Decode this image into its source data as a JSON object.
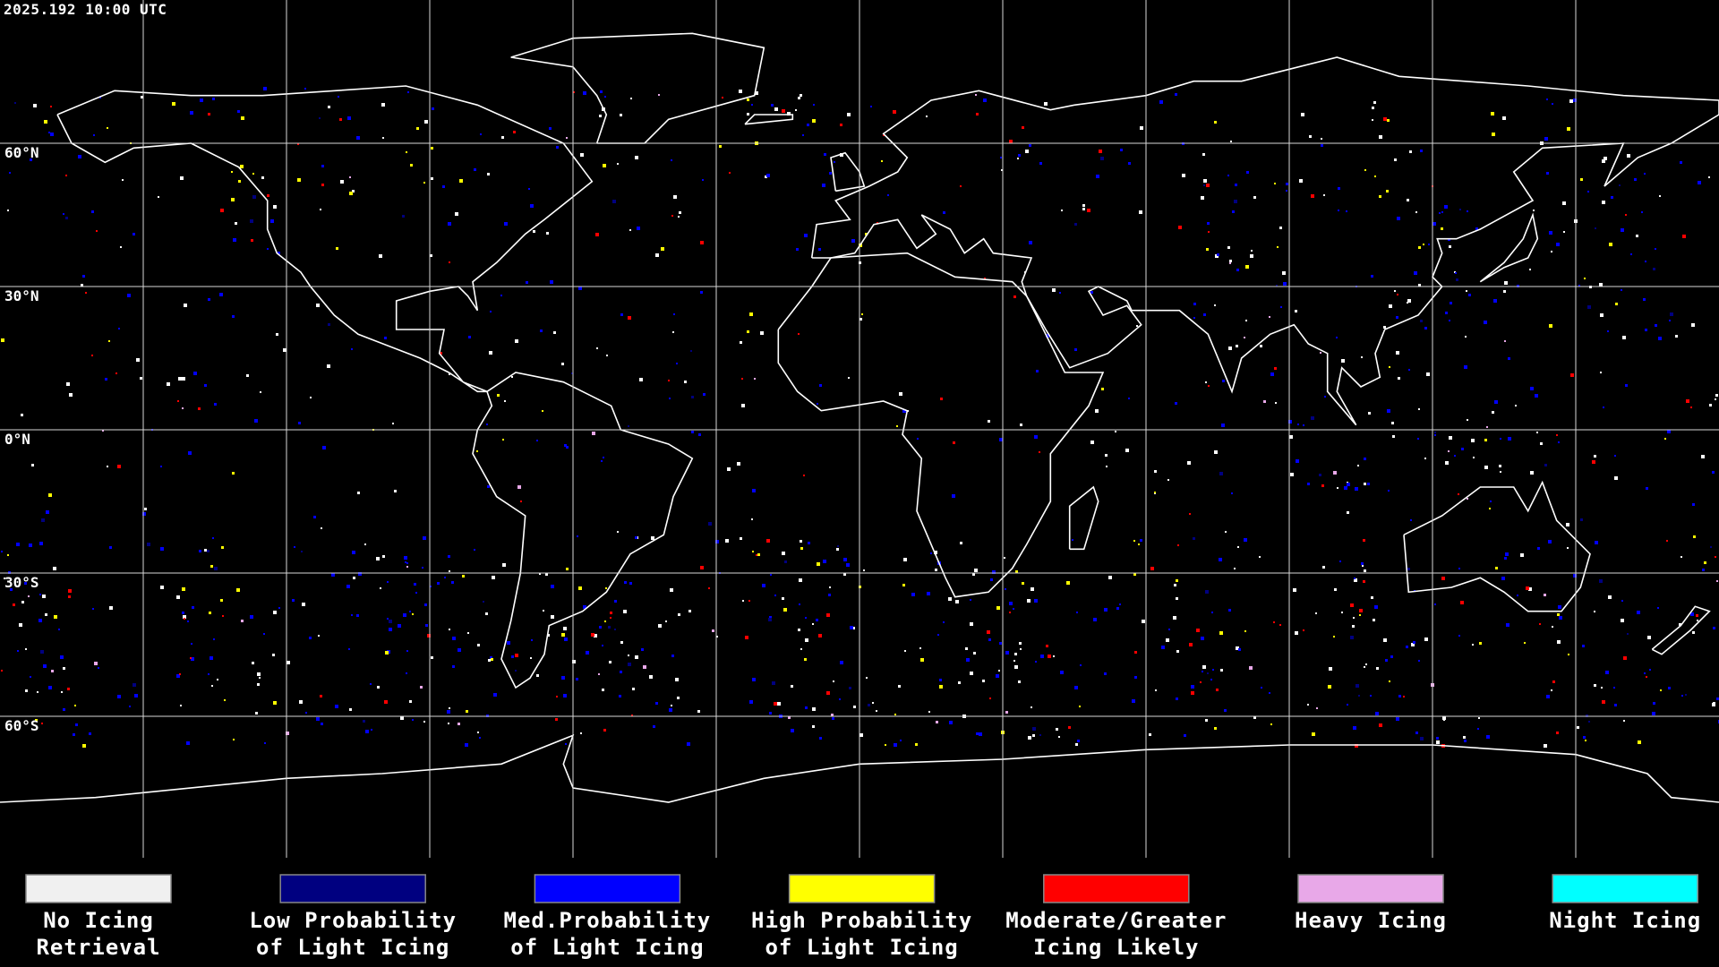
{
  "header": {
    "title": "2025.192 10:00 UTC"
  },
  "map": {
    "lat_labels": [
      "60°N",
      "30°N",
      "0°N",
      "30°S",
      "60°S"
    ]
  },
  "legend": [
    {
      "label": [
        "No Icing",
        "Retrieval"
      ],
      "color": "#f0f0f0"
    },
    {
      "label": [
        "Low Probability",
        "of Light Icing"
      ],
      "color": "#000080"
    },
    {
      "label": [
        "Med.Probability",
        "of Light Icing"
      ],
      "color": "#0000ff"
    },
    {
      "label": [
        "High Probability",
        "of Light Icing"
      ],
      "color": "#ffff00"
    },
    {
      "label": [
        "Moderate/Greater",
        "Icing Likely"
      ],
      "color": "#ff0000"
    },
    {
      "label": [
        "Heavy Icing"
      ],
      "color": "#e8a8e8"
    },
    {
      "label": [
        "Night Icing"
      ],
      "color": "#00ffff"
    }
  ]
}
